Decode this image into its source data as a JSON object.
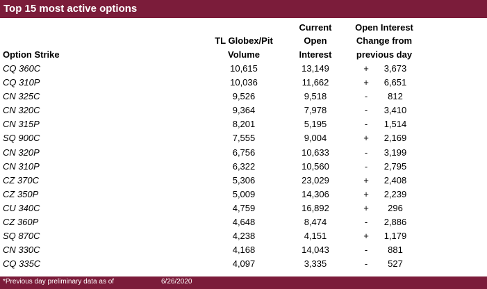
{
  "title": "Top 15 most active options",
  "headers": {
    "strike": "Option Strike",
    "volume": [
      "TL Globex/Pit",
      "Volume"
    ],
    "open_interest": [
      "Current",
      "Open",
      "Interest"
    ],
    "change": [
      "Open Interest",
      "Change from",
      "previous day"
    ]
  },
  "rows": [
    {
      "strike": "CQ 360C",
      "volume": "10,615",
      "oi": "13,149",
      "sign": "+",
      "change": "3,673"
    },
    {
      "strike": "CQ 310P",
      "volume": "10,036",
      "oi": "11,662",
      "sign": "+",
      "change": "6,651"
    },
    {
      "strike": "CN 325C",
      "volume": "9,526",
      "oi": "9,518",
      "sign": "-",
      "change": "812"
    },
    {
      "strike": "CN 320C",
      "volume": "9,364",
      "oi": "7,978",
      "sign": "-",
      "change": "3,410"
    },
    {
      "strike": "CN 315P",
      "volume": "8,201",
      "oi": "5,195",
      "sign": "-",
      "change": "1,514"
    },
    {
      "strike": "SQ 900C",
      "volume": "7,555",
      "oi": "9,004",
      "sign": "+",
      "change": "2,169"
    },
    {
      "strike": "CN 320P",
      "volume": "6,756",
      "oi": "10,633",
      "sign": "-",
      "change": "3,199"
    },
    {
      "strike": "CN 310P",
      "volume": "6,322",
      "oi": "10,560",
      "sign": "-",
      "change": "2,795"
    },
    {
      "strike": "CZ 370C",
      "volume": "5,306",
      "oi": "23,029",
      "sign": "+",
      "change": "2,408"
    },
    {
      "strike": "CZ 350P",
      "volume": "5,009",
      "oi": "14,306",
      "sign": "+",
      "change": "2,239"
    },
    {
      "strike": "CU 340C",
      "volume": "4,759",
      "oi": "16,892",
      "sign": "+",
      "change": "296"
    },
    {
      "strike": "CZ 360P",
      "volume": "4,648",
      "oi": "8,474",
      "sign": "-",
      "change": "2,886"
    },
    {
      "strike": "SQ 870C",
      "volume": "4,238",
      "oi": "4,151",
      "sign": "+",
      "change": "1,179"
    },
    {
      "strike": "CN 330C",
      "volume": "4,168",
      "oi": "14,043",
      "sign": "-",
      "change": "881"
    },
    {
      "strike": "CQ 335C",
      "volume": "4,097",
      "oi": "3,335",
      "sign": "-",
      "change": "527"
    }
  ],
  "footer": {
    "note": "*Previous day preliminary data as of",
    "date": "6/26/2020"
  },
  "colors": {
    "accent": "#7b1c3a"
  }
}
